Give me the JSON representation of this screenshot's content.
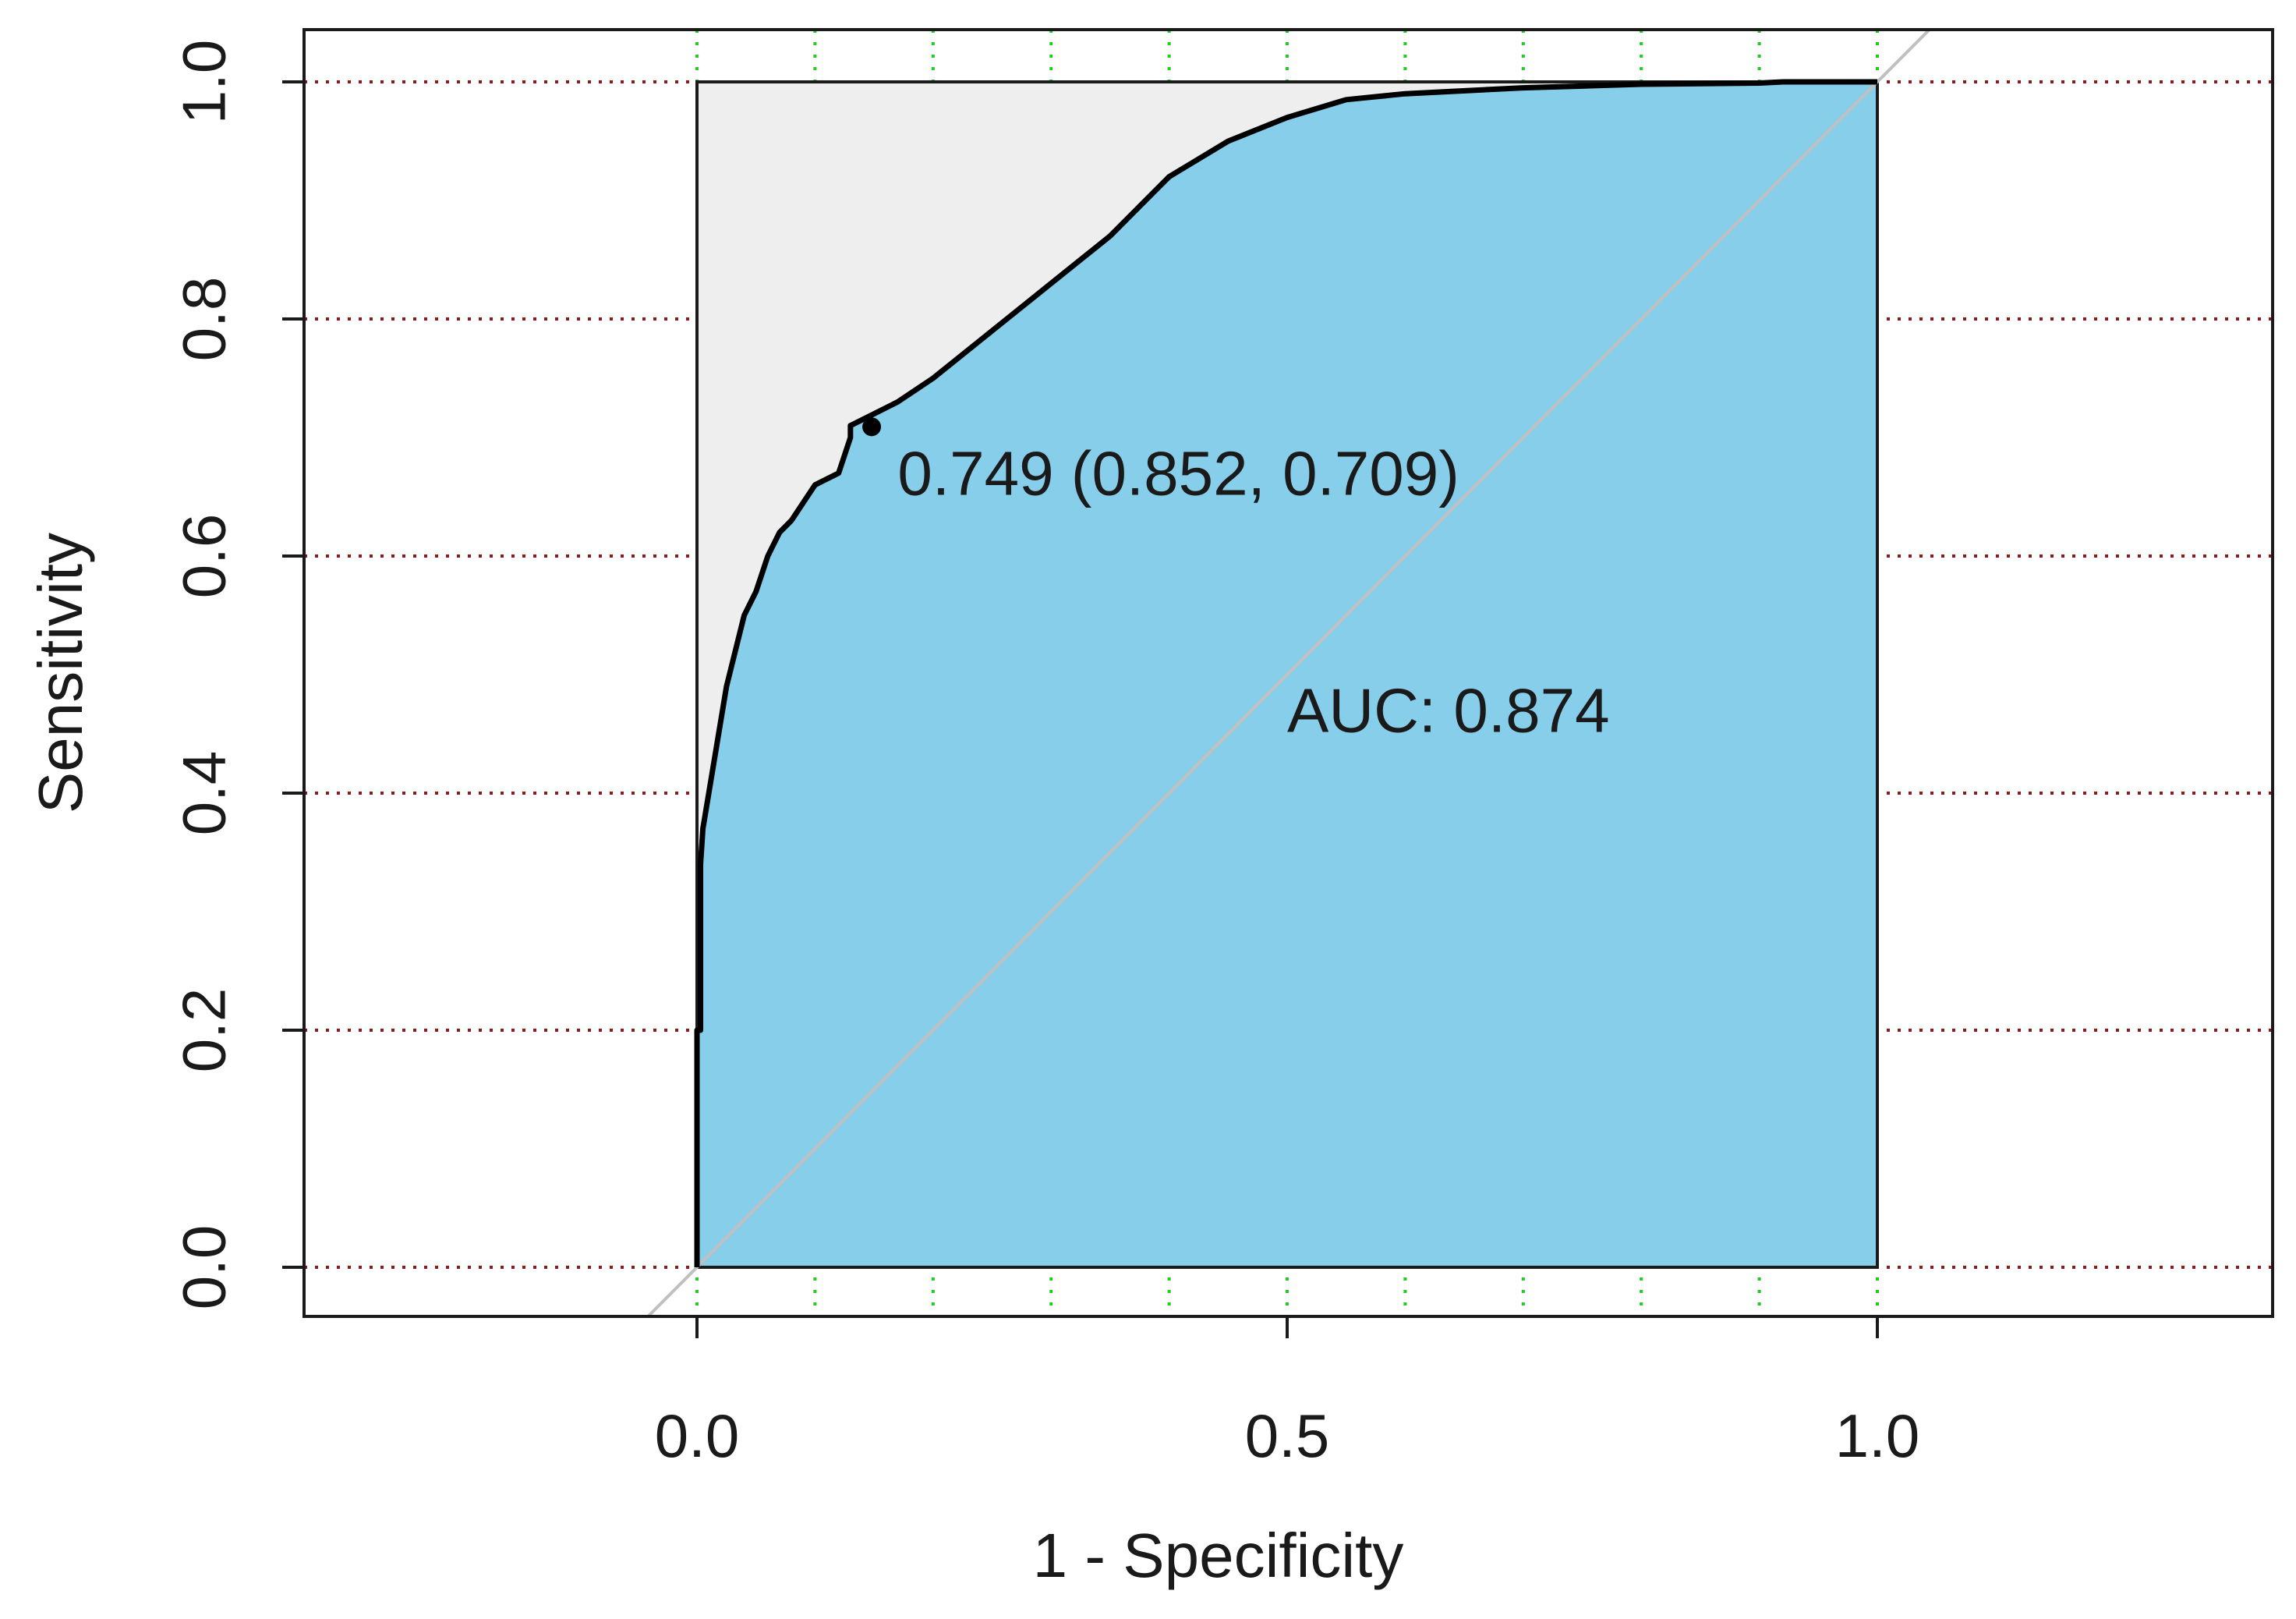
{
  "chart_data": {
    "type": "area",
    "xlabel": "1 - Specificity",
    "ylabel": "Sensitivity",
    "xlim": [
      -0.333,
      1.333
    ],
    "ylim": [
      -0.04,
      1.04
    ],
    "x_ticks": [
      0.0,
      0.5,
      1.0
    ],
    "x_tick_labels": [
      "0.0",
      "0.5",
      "1.0"
    ],
    "y_ticks": [
      0.0,
      0.2,
      0.4,
      0.6,
      0.8,
      1.0
    ],
    "y_tick_labels": [
      "0.0",
      "0.2",
      "0.4",
      "0.6",
      "0.8",
      "1.0"
    ],
    "vertical_grid": [
      0.0,
      0.1,
      0.2,
      0.3,
      0.4,
      0.5,
      0.6,
      0.7,
      0.8,
      0.9,
      1.0
    ],
    "horizontal_grid": [
      0.0,
      0.2,
      0.4,
      0.6,
      0.8,
      1.0
    ],
    "auc_label": "AUC: 0.874",
    "threshold_label": "0.749 (0.852, 0.709)",
    "threshold_point": {
      "x": 0.148,
      "y": 0.709
    },
    "auc_label_pos": {
      "x": 0.5,
      "y": 0.47
    },
    "threshold_label_pos": {
      "x": 0.17,
      "y": 0.67
    },
    "colors": {
      "auc_fill": "#87ceeb",
      "max_region_fill": "#eeeeee",
      "roc_line": "#000000",
      "diagonal": "#c0c0c0",
      "h_grid": "#8b1a1a",
      "v_grid": "#22cc22"
    },
    "roc_curve": {
      "x": [
        0.0,
        0.0,
        0.003,
        0.003,
        0.005,
        0.01,
        0.015,
        0.02,
        0.025,
        0.03,
        0.04,
        0.05,
        0.06,
        0.07,
        0.08,
        0.1,
        0.12,
        0.13,
        0.13,
        0.15,
        0.17,
        0.2,
        0.25,
        0.3,
        0.35,
        0.37,
        0.4,
        0.45,
        0.5,
        0.55,
        0.6,
        0.7,
        0.8,
        0.9,
        0.92,
        1.0
      ],
      "y": [
        0.0,
        0.2,
        0.2,
        0.34,
        0.37,
        0.4,
        0.43,
        0.46,
        0.49,
        0.51,
        0.55,
        0.57,
        0.6,
        0.62,
        0.63,
        0.66,
        0.67,
        0.7,
        0.71,
        0.72,
        0.73,
        0.75,
        0.79,
        0.83,
        0.87,
        0.89,
        0.92,
        0.95,
        0.97,
        0.985,
        0.99,
        0.995,
        0.998,
        0.999,
        1.0,
        1.0
      ]
    }
  }
}
